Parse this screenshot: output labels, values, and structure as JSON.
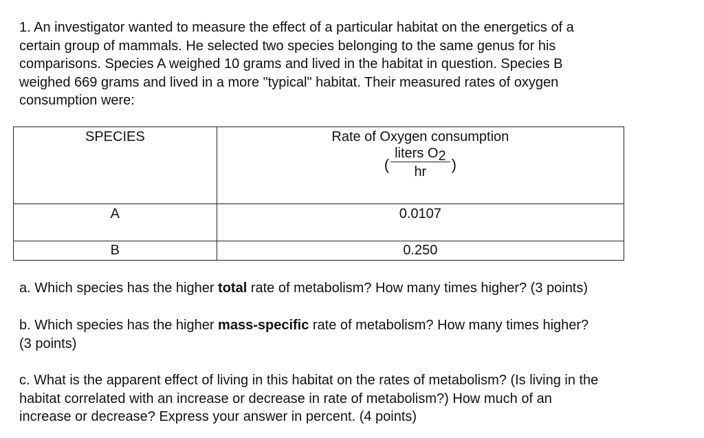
{
  "intro": {
    "lines": [
      "1. An investigator wanted to measure the effect of a particular habitat on the energetics of a",
      "certain group of mammals.  He selected two species belonging to the same genus for his",
      "comparisons.  Species A weighed 10 grams and lived in the habitat in question.  Species B",
      "weighed 669 grams and lived in a more \"typical\" habitat.  Their measured rates of oxygen",
      "consumption were:"
    ]
  },
  "table": {
    "headers": {
      "species": "SPECIES",
      "rate": "Rate of Oxygen consumption",
      "unit": {
        "open_paren": "(",
        "numerator_text": "liters O",
        "numerator_subscript": "2",
        "denominator": "hr",
        "close_paren": ")"
      }
    },
    "rows": [
      {
        "species": "A",
        "rate": "0.0107"
      },
      {
        "species": "B",
        "rate": "0.250"
      }
    ]
  },
  "questions": {
    "a": {
      "prefix": "a. Which species has the higher ",
      "bold": "total",
      "suffix": " rate of metabolism?  How many times higher? (3 points)"
    },
    "b": {
      "prefix": "b. Which species has the higher ",
      "bold": "mass-specific",
      "suffix": " rate of metabolism?  How many times higher?",
      "line2": "(3 points)"
    },
    "c": {
      "lines": [
        "c. What is the apparent effect of living in this habitat on the rates of metabolism?  (Is living in the",
        "habitat correlated with an increase or decrease in rate of metabolism?)  How much of an",
        "increase or decrease?  Express your answer in percent.  (4 points)"
      ]
    }
  }
}
